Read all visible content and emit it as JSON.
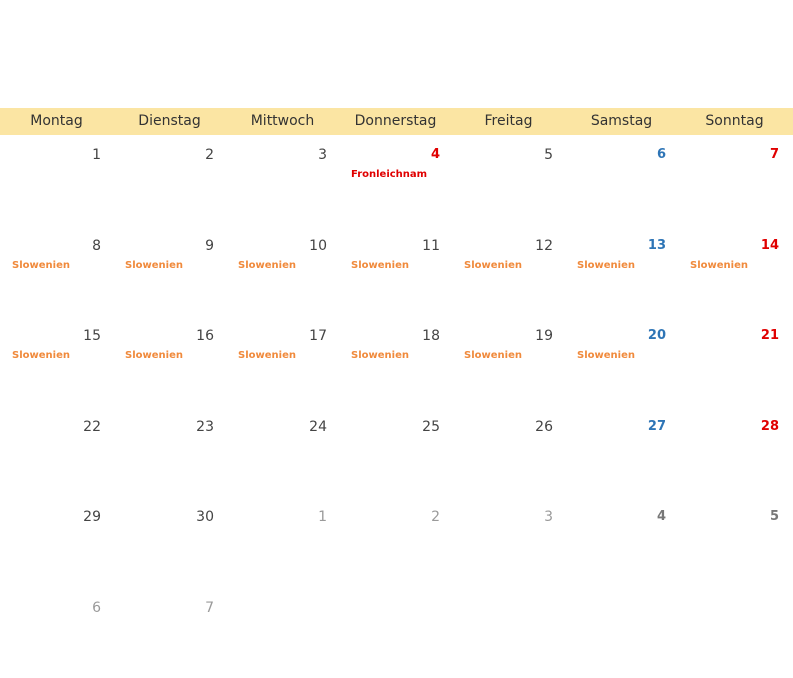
{
  "weekdays": [
    "Montag",
    "Dienstag",
    "Mittwoch",
    "Donnerstag",
    "Freitag",
    "Samstag",
    "Sonntag"
  ],
  "colors": {
    "header_bg": "#fbe5a3",
    "saturday": "#2e75b6",
    "sunday_holiday": "#e00000",
    "regional_event": "#f08a3c",
    "other_month": "#9a9a9a"
  },
  "weeks": [
    [
      {
        "day": "1",
        "kind": "normal",
        "event": ""
      },
      {
        "day": "2",
        "kind": "normal",
        "event": ""
      },
      {
        "day": "3",
        "kind": "normal",
        "event": ""
      },
      {
        "day": "4",
        "kind": "hol",
        "event": "Fronleichnam",
        "event_kind": "holiday"
      },
      {
        "day": "5",
        "kind": "normal",
        "event": ""
      },
      {
        "day": "6",
        "kind": "sat",
        "event": ""
      },
      {
        "day": "7",
        "kind": "sun",
        "event": ""
      }
    ],
    [
      {
        "day": "8",
        "kind": "normal",
        "event": "Slowenien",
        "event_kind": "regional"
      },
      {
        "day": "9",
        "kind": "normal",
        "event": "Slowenien",
        "event_kind": "regional"
      },
      {
        "day": "10",
        "kind": "normal",
        "event": "Slowenien",
        "event_kind": "regional"
      },
      {
        "day": "11",
        "kind": "normal",
        "event": "Slowenien",
        "event_kind": "regional"
      },
      {
        "day": "12",
        "kind": "normal",
        "event": "Slowenien",
        "event_kind": "regional"
      },
      {
        "day": "13",
        "kind": "sat",
        "event": "Slowenien",
        "event_kind": "regional"
      },
      {
        "day": "14",
        "kind": "sun",
        "event": "Slowenien",
        "event_kind": "regional"
      }
    ],
    [
      {
        "day": "15",
        "kind": "normal",
        "event": "Slowenien",
        "event_kind": "regional"
      },
      {
        "day": "16",
        "kind": "normal",
        "event": "Slowenien",
        "event_kind": "regional"
      },
      {
        "day": "17",
        "kind": "normal",
        "event": "Slowenien",
        "event_kind": "regional"
      },
      {
        "day": "18",
        "kind": "normal",
        "event": "Slowenien",
        "event_kind": "regional"
      },
      {
        "day": "19",
        "kind": "normal",
        "event": "Slowenien",
        "event_kind": "regional"
      },
      {
        "day": "20",
        "kind": "sat",
        "event": "Slowenien",
        "event_kind": "regional"
      },
      {
        "day": "21",
        "kind": "sun",
        "event": ""
      }
    ],
    [
      {
        "day": "22",
        "kind": "normal",
        "event": ""
      },
      {
        "day": "23",
        "kind": "normal",
        "event": ""
      },
      {
        "day": "24",
        "kind": "normal",
        "event": ""
      },
      {
        "day": "25",
        "kind": "normal",
        "event": ""
      },
      {
        "day": "26",
        "kind": "normal",
        "event": ""
      },
      {
        "day": "27",
        "kind": "sat",
        "event": ""
      },
      {
        "day": "28",
        "kind": "sun",
        "event": ""
      }
    ],
    [
      {
        "day": "29",
        "kind": "normal",
        "event": ""
      },
      {
        "day": "30",
        "kind": "normal",
        "event": ""
      },
      {
        "day": "1",
        "kind": "other",
        "event": ""
      },
      {
        "day": "2",
        "kind": "other",
        "event": ""
      },
      {
        "day": "3",
        "kind": "other",
        "event": ""
      },
      {
        "day": "4",
        "kind": "other-we",
        "event": ""
      },
      {
        "day": "5",
        "kind": "other-we",
        "event": ""
      }
    ],
    [
      {
        "day": "6",
        "kind": "other",
        "event": ""
      },
      {
        "day": "7",
        "kind": "other",
        "event": ""
      }
    ]
  ]
}
